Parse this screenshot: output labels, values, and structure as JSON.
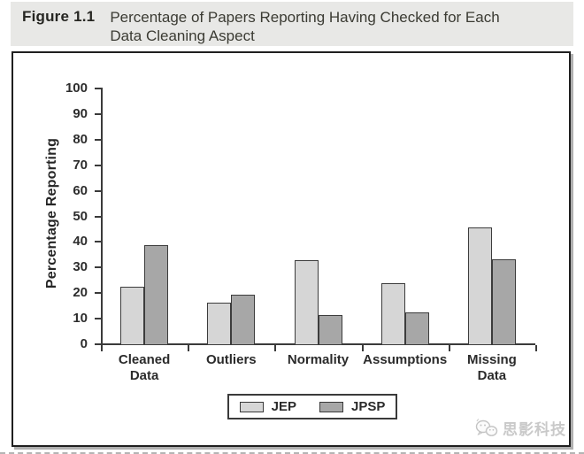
{
  "header": {
    "figure_label": "Figure 1.1",
    "caption_line1": "Percentage of Papers Reporting Having Checked for Each",
    "caption_line2": "Data Cleaning Aspect"
  },
  "chart_data": {
    "type": "bar",
    "title": "Percentage of Papers Reporting Having Checked for Each Data Cleaning Aspect",
    "xlabel": "",
    "ylabel": "Percentage Reporting",
    "ylim": [
      0,
      100
    ],
    "ytick_step": 10,
    "grid": false,
    "legend_position": "bottom-center",
    "categories": [
      "Cleaned\nData",
      "Outliers",
      "Normality",
      "Assumptions",
      "Missing\nData"
    ],
    "series": [
      {
        "name": "JEP",
        "color": "#d6d6d6",
        "values": [
          22,
          16,
          32.5,
          23.5,
          45.5
        ]
      },
      {
        "name": "JPSP",
        "color": "#a7a7a7",
        "values": [
          38.5,
          19,
          11,
          12,
          33
        ]
      }
    ],
    "bar_border_color": "#3c3c3c"
  },
  "watermark": {
    "text": "思影科技",
    "icon": "wechat-icon"
  }
}
